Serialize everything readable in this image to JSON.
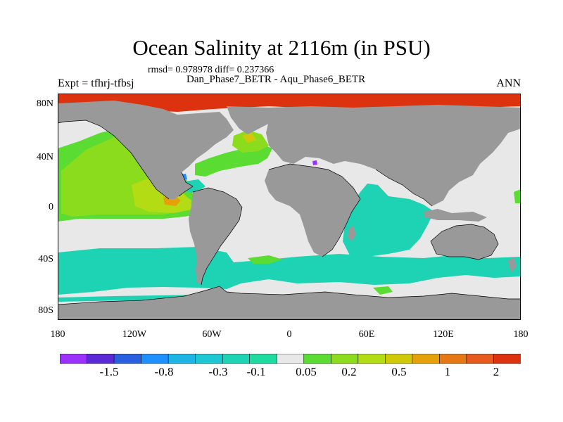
{
  "title": "Ocean Salinity at 2116m (in PSU)",
  "stats": "rmsd= 0.978978 diff= 0.237366",
  "subtitle": "Dan_Phase7_BETR - Aqu_Phase6_BETR",
  "experiment": "Expt = tfhrj-tfbsj",
  "season": "ANN",
  "lat_labels": [
    "80N",
    "40N",
    "0",
    "40S",
    "80S"
  ],
  "lon_labels": [
    "180",
    "120W",
    "60W",
    "0",
    "60E",
    "120E",
    "180"
  ],
  "colorbar": {
    "colors": [
      "#9b30ff",
      "#5a2ad6",
      "#2a5fe0",
      "#1e90ff",
      "#1eb4e6",
      "#1ec8d2",
      "#1ed2b4",
      "#1edca0",
      "#e8e8e8",
      "#5adc32",
      "#8cdc1e",
      "#b4dc14",
      "#d2c80a",
      "#e6a00a",
      "#e67814",
      "#e65a1e",
      "#dc3210"
    ],
    "tick_labels": [
      "-1.5",
      "-0.8",
      "-0.3",
      "-0.1",
      "0.05",
      "0.2",
      "0.5",
      "1",
      "2"
    ]
  },
  "palette": {
    "land": "#999999",
    "neutral": "#e8e8e8",
    "cyan": "#1ed2b4",
    "green_light": "#5adc32",
    "green": "#8cdc1e",
    "yellow_green": "#b4dc14",
    "yellow": "#d2c80a",
    "orange": "#e6a00a",
    "red": "#dc3210",
    "blue": "#1e90ff",
    "violet": "#9b30ff"
  }
}
